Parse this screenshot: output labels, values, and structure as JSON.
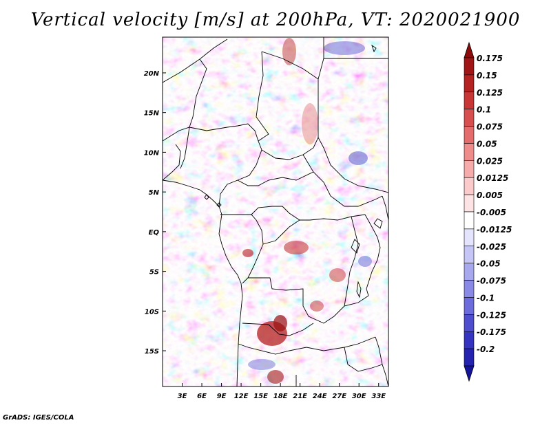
{
  "title": "Vertical velocity [m/s] at 200hPa, VT: 2020021900",
  "footer": "GrADS: IGES/COLA",
  "map": {
    "lat_range": [
      -19.5,
      24.5
    ],
    "lon_range": [
      0,
      34.5
    ],
    "lat_ticks": [
      {
        "value": 20,
        "label": "20N"
      },
      {
        "value": 15,
        "label": "15N"
      },
      {
        "value": 10,
        "label": "10N"
      },
      {
        "value": 5,
        "label": "5N"
      },
      {
        "value": 0,
        "label": "EQ"
      },
      {
        "value": -5,
        "label": "5S"
      },
      {
        "value": -10,
        "label": "10S"
      },
      {
        "value": -15,
        "label": "15S"
      }
    ],
    "lon_ticks": [
      {
        "value": 3,
        "label": "3E"
      },
      {
        "value": 6,
        "label": "6E"
      },
      {
        "value": 9,
        "label": "9E"
      },
      {
        "value": 12,
        "label": "12E"
      },
      {
        "value": 15,
        "label": "15E"
      },
      {
        "value": 18,
        "label": "18E"
      },
      {
        "value": 21,
        "label": "21E"
      },
      {
        "value": 24,
        "label": "24E"
      },
      {
        "value": 27,
        "label": "27E"
      },
      {
        "value": 30,
        "label": "30E"
      },
      {
        "value": 33,
        "label": "33E"
      }
    ]
  },
  "colorbar": {
    "levels": [
      {
        "label": "0.175",
        "color": "#a01616"
      },
      {
        "label": "0.15",
        "color": "#b42222"
      },
      {
        "label": "0.125",
        "color": "#c83636"
      },
      {
        "label": "0.1",
        "color": "#d84f4f"
      },
      {
        "label": "0.075",
        "color": "#e46c6c"
      },
      {
        "label": "0.05",
        "color": "#ef8c8c"
      },
      {
        "label": "0.025",
        "color": "#f7acac"
      },
      {
        "label": "0.0125",
        "color": "#fbcaca"
      },
      {
        "label": "0.005",
        "color": "#fde4e4"
      },
      {
        "label": "-0.005",
        "color": "#ffffff"
      },
      {
        "label": "-0.0125",
        "color": "#e4e4fc"
      },
      {
        "label": "-0.025",
        "color": "#c6c6f6"
      },
      {
        "label": "-0.05",
        "color": "#a8a8ef"
      },
      {
        "label": "-0.075",
        "color": "#8a8ae6"
      },
      {
        "label": "-0.1",
        "color": "#6c6cdc"
      },
      {
        "label": "-0.125",
        "color": "#4e4ecf"
      },
      {
        "label": "-0.175",
        "color": "#3434c0"
      },
      {
        "label": "-0.2",
        "color": "#2424b0"
      }
    ],
    "top_color": "#8c0c0c",
    "bottom_color": "#14149a"
  }
}
